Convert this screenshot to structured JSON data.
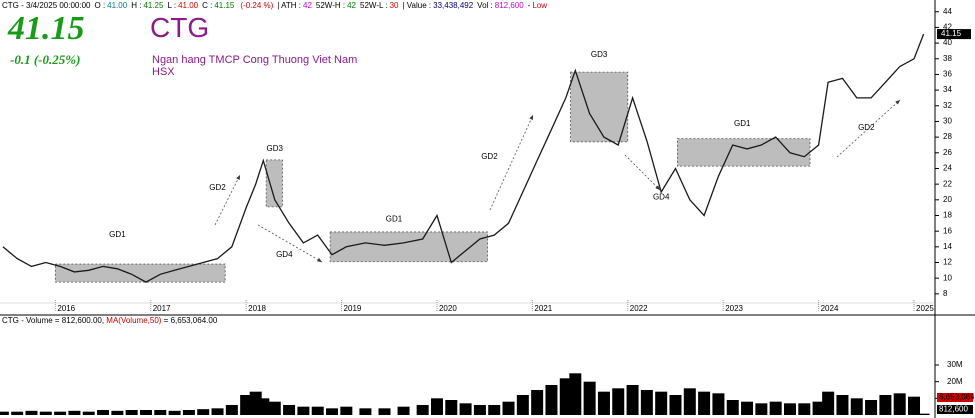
{
  "header_items": [
    {
      "label": "CTG - 3/4/2025 00:00:00",
      "value": "",
      "color": "#000000"
    },
    {
      "label": "O :",
      "value": "41.00",
      "color": "#008080"
    },
    {
      "label": "H :",
      "value": "41.25",
      "color": "#008000"
    },
    {
      "label": "L :",
      "value": "41.00",
      "color": "#d00000"
    },
    {
      "label": "C :",
      "value": "41.15",
      "color": "#008000"
    },
    {
      "label": "",
      "value": "(-0.24 %)",
      "color": "#d00000"
    },
    {
      "label": "| ATH :",
      "value": "42",
      "color": "#cc00cc"
    },
    {
      "label": "52W-H :",
      "value": "42",
      "color": "#008000"
    },
    {
      "label": "52W-L :",
      "value": "30",
      "color": "#d00000"
    },
    {
      "label": "| Value :",
      "value": "33,438,492",
      "color": "#000080"
    },
    {
      "label": "Vol :",
      "value": "812,600",
      "color": "#cc00cc"
    },
    {
      "label": "-",
      "value": "Low",
      "color": "#d00000"
    }
  ],
  "big_price": "41.15",
  "change": "-0.1 (-0.25%)",
  "symbol": "CTG",
  "company": "Ngan hang TMCP Cong Thuong Viet Nam",
  "exchange": "HSX",
  "last_price_label": "41.15",
  "volume_header": {
    "prefix": "CTG - Volume = 812,600.00,",
    "ma_label": "MA(Volume,50)",
    "ma_value": "= 6,653,064.00"
  },
  "volume_last_label": "812,600",
  "volume_ma_label": "6,653,064",
  "chart_data": [
    {
      "type": "line",
      "x": [
        2015.45,
        2015.6,
        2015.75,
        2015.9,
        2016.05,
        2016.2,
        2016.35,
        2016.5,
        2016.65,
        2016.8,
        2016.95,
        2017.1,
        2017.25,
        2017.4,
        2017.55,
        2017.7,
        2017.85,
        2018.0,
        2018.1,
        2018.18,
        2018.3,
        2018.45,
        2018.6,
        2018.75,
        2018.9,
        2019.05,
        2019.25,
        2019.45,
        2019.65,
        2019.85,
        2020.0,
        2020.15,
        2020.3,
        2020.45,
        2020.6,
        2020.75,
        2020.9,
        2021.05,
        2021.2,
        2021.35,
        2021.45,
        2021.6,
        2021.75,
        2021.9,
        2022.05,
        2022.2,
        2022.35,
        2022.5,
        2022.65,
        2022.8,
        2022.95,
        2023.1,
        2023.25,
        2023.4,
        2023.55,
        2023.7,
        2023.85,
        2024.0,
        2024.1,
        2024.25,
        2024.4,
        2024.55,
        2024.7,
        2024.85,
        2025.0,
        2025.1
      ],
      "series": [
        {
          "name": "CTG",
          "color": "#1a1a1a",
          "values": [
            14,
            12.5,
            11.5,
            12,
            11.5,
            10.8,
            11,
            11.5,
            11.2,
            10.5,
            9.5,
            10.5,
            11,
            11.5,
            12,
            12.5,
            14,
            19,
            22,
            25,
            20,
            17,
            14.5,
            15.5,
            13,
            14,
            14.5,
            14.2,
            14.5,
            15,
            18,
            12,
            13.5,
            15,
            15.5,
            17,
            21,
            25,
            29,
            33,
            36.5,
            31,
            28,
            27,
            33,
            27.5,
            21,
            24,
            20,
            18,
            23,
            27,
            26.5,
            27,
            28,
            26,
            25.5,
            27,
            35,
            35.5,
            33,
            33,
            35,
            37,
            38,
            41.15
          ]
        }
      ],
      "xlim": [
        2015.42,
        2025.22
      ],
      "xticks": [
        2016,
        2017,
        2018,
        2019,
        2020,
        2021,
        2022,
        2023,
        2024,
        2025
      ],
      "ylim": [
        5.3,
        45.5
      ],
      "yticks": [
        8,
        10,
        12,
        14,
        16,
        18,
        20,
        22,
        24,
        26,
        28,
        30,
        32,
        34,
        36,
        38,
        40,
        42,
        44
      ],
      "boxes": [
        {
          "x": [
            2016.0,
            2017.78
          ],
          "y": [
            9.5,
            11.8
          ]
        },
        {
          "x": [
            2018.21,
            2018.38
          ],
          "y": [
            19.1,
            25.1
          ]
        },
        {
          "x": [
            2018.88,
            2020.53
          ],
          "y": [
            12.1,
            15.9
          ]
        },
        {
          "x": [
            2021.4,
            2022.0
          ],
          "y": [
            27.4,
            36.3
          ]
        },
        {
          "x": [
            2022.52,
            2023.91
          ],
          "y": [
            24.3,
            27.8
          ]
        }
      ],
      "annotations": [
        {
          "text": "GD1",
          "x": 2016.65,
          "y": 15.5
        },
        {
          "text": "GD2",
          "x": 2017.7,
          "y": 21.5
        },
        {
          "text": "GD3",
          "x": 2018.3,
          "y": 26.5
        },
        {
          "text": "GD4",
          "x": 2018.4,
          "y": 13
        },
        {
          "text": "GD1",
          "x": 2019.55,
          "y": 17.5
        },
        {
          "text": "GD2",
          "x": 2020.55,
          "y": 25.5
        },
        {
          "text": "GD3",
          "x": 2021.7,
          "y": 38.5
        },
        {
          "text": "GD4",
          "x": 2022.35,
          "y": 20.3
        },
        {
          "text": "GD1",
          "x": 2023.2,
          "y": 29.7
        },
        {
          "text": "GD2",
          "x": 2024.5,
          "y": 29.2
        }
      ]
    },
    {
      "type": "bar",
      "series": [
        {
          "name": "Volume",
          "color": "#000000",
          "values": [
            2000000,
            2000000,
            2500000,
            2000000,
            2000000,
            2500000,
            2000000,
            3000000,
            2500000,
            3000000,
            3000000,
            3000000,
            2500000,
            3000000,
            3500000,
            4000000,
            6000000,
            12000000,
            14000000,
            10000000,
            8000000,
            6000000,
            5000000,
            5000000,
            4000000,
            5000000,
            4000000,
            4000000,
            5000000,
            6000000,
            10000000,
            9000000,
            7000000,
            6000000,
            6000000,
            8000000,
            12000000,
            15000000,
            18000000,
            22000000,
            25000000,
            20000000,
            14000000,
            16000000,
            18000000,
            15000000,
            14000000,
            12000000,
            16000000,
            14000000,
            13000000,
            9000000,
            8000000,
            7000000,
            8000000,
            7000000,
            7000000,
            8000000,
            14000000,
            12000000,
            10000000,
            9000000,
            12000000,
            13000000,
            11000000,
            812600
          ]
        }
      ],
      "ylim": [
        0,
        60000000
      ],
      "yticks": [
        {
          "value": 10000000,
          "label": "10M"
        },
        {
          "value": 20000000,
          "label": "20M"
        },
        {
          "value": 30000000,
          "label": "30M"
        }
      ]
    }
  ]
}
